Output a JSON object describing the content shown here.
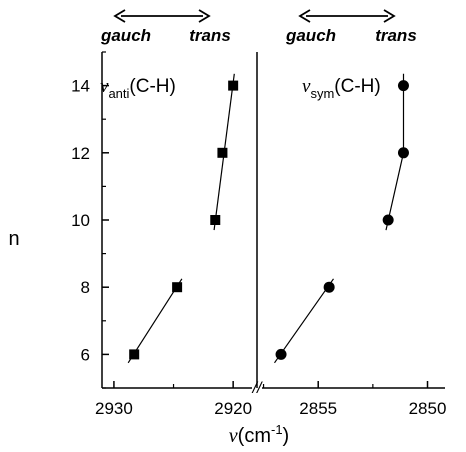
{
  "chart_data": [
    {
      "type": "scatter",
      "title_symbol": "ν",
      "title_sub": "anti",
      "title_rest": "(C-H)",
      "ylabel": "n",
      "xlim": [
        2931,
        2918
      ],
      "ylim": [
        5,
        15
      ],
      "x_ticks": [
        2930,
        2920
      ],
      "y_ticks": [
        6,
        8,
        10,
        12,
        14
      ],
      "marker": "square",
      "arrow": {
        "left": "gauch",
        "right": "trans"
      },
      "series": [
        {
          "points": [
            {
              "x": 2928.3,
              "y": 6
            },
            {
              "x": 2924.7,
              "y": 8
            },
            {
              "x": 2921.5,
              "y": 10
            },
            {
              "x": 2920.9,
              "y": 12
            },
            {
              "x": 2920.0,
              "y": 14
            }
          ]
        }
      ],
      "fit_lines": [
        [
          {
            "x": 2928.8,
            "y": 5.75
          },
          {
            "x": 2924.3,
            "y": 8.25
          }
        ],
        [
          {
            "x": 2921.6,
            "y": 9.7
          },
          {
            "x": 2919.9,
            "y": 14.35
          }
        ]
      ]
    },
    {
      "type": "scatter",
      "title_symbol": "ν",
      "title_sub": "sym",
      "title_rest": "(C-H)",
      "xlim": [
        2857.8,
        2849.2
      ],
      "x_ticks": [
        2855,
        2850
      ],
      "marker": "circle",
      "arrow": {
        "left": "gauch",
        "right": "trans"
      },
      "series": [
        {
          "points": [
            {
              "x": 2856.7,
              "y": 6
            },
            {
              "x": 2854.5,
              "y": 8
            },
            {
              "x": 2851.8,
              "y": 10
            },
            {
              "x": 2851.1,
              "y": 12
            },
            {
              "x": 2851.1,
              "y": 14
            }
          ]
        }
      ],
      "fit_lines": [
        [
          {
            "x": 2857.0,
            "y": 5.75
          },
          {
            "x": 2854.3,
            "y": 8.25
          }
        ],
        [
          {
            "x": 2851.9,
            "y": 9.7
          },
          {
            "x": 2851.1,
            "y": 12
          },
          {
            "x": 2851.1,
            "y": 14.35
          }
        ]
      ]
    }
  ],
  "xaxis": {
    "title_symbol": "ν",
    "title_text": "(cm",
    "title_exp": "-1",
    "title_end": ")"
  },
  "break_mark": "//"
}
